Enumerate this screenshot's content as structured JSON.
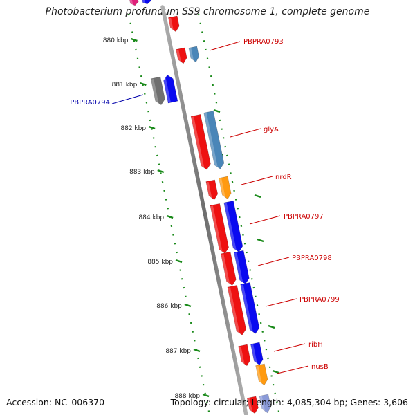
{
  "title": "Photobacterium profundum SS9 chromosome 1, complete genome",
  "footer": {
    "accession": "Accession: NC_006370",
    "summary": "Topology: circular; Length: 4,085,304 bp; Genes: 3,606"
  },
  "colors": {
    "red": "#ee1111",
    "blue": "#0a0af0",
    "steelblue": "#4a86b8",
    "orange": "#ff9a10",
    "gray": "#707070",
    "magenta": "#e0207a",
    "tick_green": "#1a8a1a",
    "backbone": "#8a8a8a"
  },
  "ruler_ticks": [
    {
      "label": "880 kbp",
      "kbp": 880
    },
    {
      "label": "881 kbp",
      "kbp": 881
    },
    {
      "label": "882 kbp",
      "kbp": 882
    },
    {
      "label": "883 kbp",
      "kbp": 883
    },
    {
      "label": "884 kbp",
      "kbp": 884
    },
    {
      "label": "885 kbp",
      "kbp": 885
    },
    {
      "label": "886 kbp",
      "kbp": 886
    },
    {
      "label": "887 kbp",
      "kbp": 887
    },
    {
      "label": "888 kbp",
      "kbp": 888
    }
  ],
  "gene_labels": [
    {
      "id": "PBPRA0793",
      "text": "PBPRA0793",
      "color": "#cc0000"
    },
    {
      "id": "PBPRA0794",
      "text": "PBPRA0794",
      "color": "#0000aa"
    },
    {
      "id": "glyA",
      "text": "glyA",
      "color": "#cc0000"
    },
    {
      "id": "nrdR",
      "text": "nrdR",
      "color": "#cc0000"
    },
    {
      "id": "PBPRA0797",
      "text": "PBPRA0797",
      "color": "#cc0000"
    },
    {
      "id": "PBPRA0798",
      "text": "PBPRA0798",
      "color": "#cc0000"
    },
    {
      "id": "PBPRA0799",
      "text": "PBPRA0799",
      "color": "#cc0000"
    },
    {
      "id": "ribH",
      "text": "ribH",
      "color": "#cc0000"
    },
    {
      "id": "nusB",
      "text": "nusB",
      "color": "#cc0000"
    }
  ]
}
